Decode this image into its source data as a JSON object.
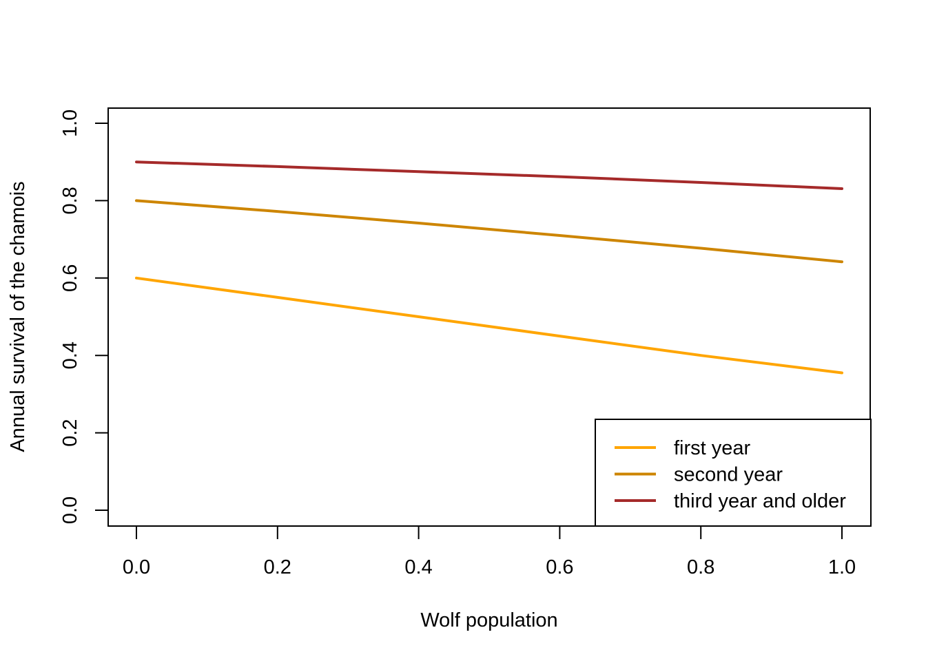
{
  "chart_data": {
    "type": "line",
    "title": "",
    "xlabel": "Wolf population",
    "ylabel": "Annual survival of the chamois",
    "xlim": [
      0.0,
      1.0
    ],
    "ylim": [
      0.0,
      1.0
    ],
    "x_ticks": [
      "0.0",
      "0.2",
      "0.4",
      "0.6",
      "0.8",
      "1.0"
    ],
    "y_ticks": [
      "0.0",
      "0.2",
      "0.4",
      "0.6",
      "0.8",
      "1.0"
    ],
    "grid": false,
    "legend_position": "bottom-right",
    "series": [
      {
        "name": "first year",
        "color": "#FFA500",
        "x": [
          0.0,
          0.2,
          0.4,
          0.6,
          0.8,
          1.0
        ],
        "values": [
          0.6,
          0.55,
          0.5,
          0.45,
          0.4,
          0.355
        ]
      },
      {
        "name": "second year",
        "color": "#CD8500",
        "x": [
          0.0,
          0.2,
          0.4,
          0.6,
          0.8,
          1.0
        ],
        "values": [
          0.8,
          0.772,
          0.742,
          0.71,
          0.677,
          0.642
        ]
      },
      {
        "name": "third year and older",
        "color": "#A52A2A",
        "x": [
          0.0,
          0.2,
          0.4,
          0.6,
          0.8,
          1.0
        ],
        "values": [
          0.9,
          0.888,
          0.875,
          0.862,
          0.847,
          0.831
        ]
      }
    ]
  }
}
